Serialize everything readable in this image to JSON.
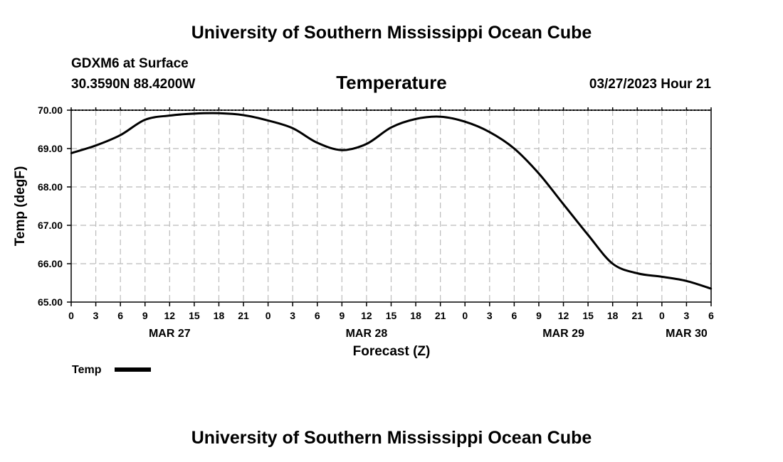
{
  "header": {
    "org_title": "University of Southern Mississippi Ocean Cube",
    "station": "GDXM6 at Surface",
    "location": "30.3590N  88.4200W",
    "variable": "Temperature",
    "issued": "03/27/2023 Hour 21"
  },
  "footer": {
    "org_title": "University of Southern Mississippi Ocean Cube"
  },
  "colors": {
    "line": "#000000",
    "grid": "#bbbbbb"
  },
  "chart_data": {
    "type": "line",
    "title": "Temperature",
    "xlabel": "Forecast (Z)",
    "ylabel": "Temp (degF)",
    "x_unit": "hours since MAR 27 00Z",
    "xlim": [
      0,
      78
    ],
    "ylim": [
      65,
      70
    ],
    "y_ticks": [
      65,
      66,
      67,
      68,
      69,
      70
    ],
    "y_tick_labels": [
      "65.00",
      "66.00",
      "67.00",
      "68.00",
      "69.00",
      "70.00"
    ],
    "x_ticks": [
      0,
      3,
      6,
      9,
      12,
      15,
      18,
      21,
      24,
      27,
      30,
      33,
      36,
      39,
      42,
      45,
      48,
      51,
      54,
      57,
      60,
      63,
      66,
      69,
      72,
      75,
      78
    ],
    "x_tick_labels": [
      "0",
      "3",
      "6",
      "9",
      "12",
      "15",
      "18",
      "21",
      "0",
      "3",
      "6",
      "9",
      "12",
      "15",
      "18",
      "21",
      "0",
      "3",
      "6",
      "9",
      "12",
      "15",
      "18",
      "21",
      "0",
      "3",
      "6"
    ],
    "day_labels": [
      {
        "x": 12,
        "label": "MAR 27"
      },
      {
        "x": 36,
        "label": "MAR 28"
      },
      {
        "x": 60,
        "label": "MAR 29"
      },
      {
        "x": 75,
        "label": "MAR 30"
      }
    ],
    "grid": true,
    "legend": {
      "position": "bottom-left",
      "entries": [
        "Temp"
      ]
    },
    "series": [
      {
        "name": "Temp",
        "x": [
          0,
          3,
          6,
          9,
          12,
          15,
          18,
          21,
          24,
          27,
          30,
          33,
          36,
          39,
          42,
          45,
          48,
          51,
          54,
          57,
          60,
          63,
          66,
          69,
          72,
          75,
          78
        ],
        "values": [
          68.88,
          69.08,
          69.35,
          69.75,
          69.86,
          69.91,
          69.92,
          69.87,
          69.73,
          69.53,
          69.15,
          68.96,
          69.12,
          69.55,
          69.77,
          69.83,
          69.7,
          69.43,
          69.0,
          68.35,
          67.55,
          66.75,
          66.0,
          65.75,
          65.66,
          65.55,
          65.35
        ]
      }
    ]
  }
}
